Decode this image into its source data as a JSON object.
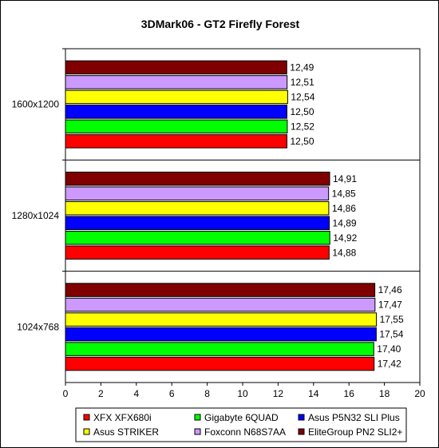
{
  "chart_data": {
    "type": "bar",
    "orientation": "horizontal",
    "title": "3DMark06 - GT2 Firefly Forest",
    "xlabel": "",
    "ylabel": "",
    "xlim": [
      0,
      20
    ],
    "x_ticks": [
      0,
      2,
      4,
      6,
      8,
      10,
      12,
      14,
      16,
      18,
      20
    ],
    "grid": false,
    "legend_position": "bottom",
    "categories": [
      "1600x1200",
      "1280x1024",
      "1024x768"
    ],
    "series": [
      {
        "name": "EliteGroup PN2 SLI2+",
        "color": "#800000",
        "values": [
          "12,49",
          "14,91",
          "17,46"
        ]
      },
      {
        "name": "Foxconn N68S7AA",
        "color": "#CC99FF",
        "values": [
          "12,51",
          "14,85",
          "17,47"
        ]
      },
      {
        "name": "Asus STRIKER",
        "color": "#FFFF00",
        "values": [
          "12,54",
          "14,86",
          "17,55"
        ]
      },
      {
        "name": "Asus P5N32 SLI Plus",
        "color": "#0000FF",
        "values": [
          "12,50",
          "14,89",
          "17,54"
        ]
      },
      {
        "name": "Gigabyte 6QUAD",
        "color": "#00FF00",
        "values": [
          "12,52",
          "14,92",
          "17,40"
        ]
      },
      {
        "name": "XFX XFX680i",
        "color": "#FF0000",
        "values": [
          "12,50",
          "14,88",
          "17,42"
        ]
      }
    ],
    "legend_order": [
      "XFX XFX680i",
      "Gigabyte 6QUAD",
      "Asus P5N32 SLI Plus",
      "Asus STRIKER",
      "Foxconn N68S7AA",
      "EliteGroup PN2 SLI2+"
    ]
  }
}
